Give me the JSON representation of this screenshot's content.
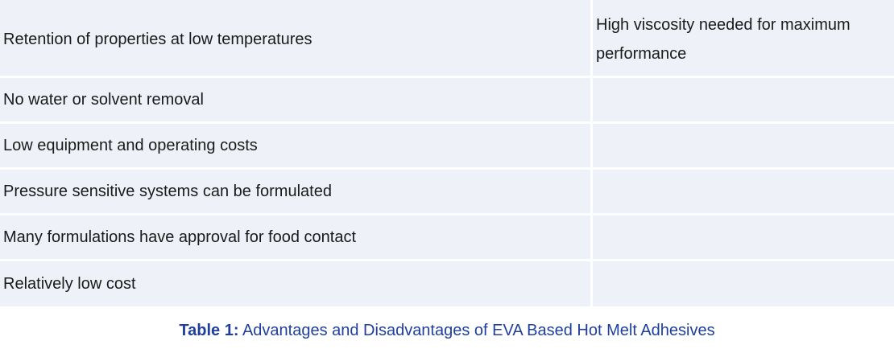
{
  "table": {
    "rows": [
      {
        "advantage": "Retention of properties at low temperatures",
        "disadvantage": "High viscosity needed for maximum performance"
      },
      {
        "advantage": "No water or solvent removal",
        "disadvantage": ""
      },
      {
        "advantage": "Low equipment and operating costs",
        "disadvantage": ""
      },
      {
        "advantage": "Pressure sensitive systems can be formulated",
        "disadvantage": ""
      },
      {
        "advantage": "Many formulations have approval for food contact",
        "disadvantage": ""
      },
      {
        "advantage": "Relatively low cost",
        "disadvantage": ""
      }
    ]
  },
  "caption": {
    "label": "Table 1:",
    "text": " Advantages and Disadvantages of EVA Based Hot Melt Adhesives"
  },
  "colors": {
    "cell_background": "#eef2f8",
    "caption_text": "#1f3f9f",
    "body_text": "#1a1a1a"
  }
}
